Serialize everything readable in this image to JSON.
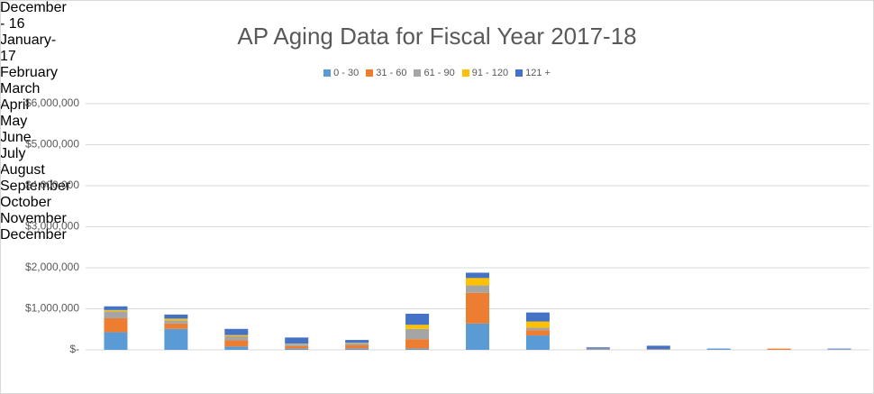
{
  "chart_data": {
    "type": "stacked_bar",
    "title": "AP Aging Data for Fiscal Year 2017-18",
    "categories": [
      "December - 16",
      "January-17",
      "February",
      "March",
      "April",
      "May",
      "June",
      "July",
      "August",
      "September",
      "October",
      "November",
      "December"
    ],
    "series": [
      {
        "name": "0 - 30",
        "color": "#5b9bd5",
        "values": [
          430000,
          510000,
          80000,
          30000,
          30000,
          30000,
          640000,
          350000,
          10000,
          10000,
          20000,
          0,
          10000
        ]
      },
      {
        "name": "31 - 60",
        "color": "#ed7d31",
        "values": [
          340000,
          130000,
          150000,
          60000,
          80000,
          230000,
          750000,
          130000,
          10000,
          10000,
          0,
          30000,
          0
        ]
      },
      {
        "name": "61 - 90",
        "color": "#a5a5a5",
        "values": [
          170000,
          80000,
          100000,
          50000,
          50000,
          250000,
          180000,
          60000,
          10000,
          0,
          0,
          0,
          10000
        ]
      },
      {
        "name": "91 - 120",
        "color": "#ffc000",
        "values": [
          30000,
          40000,
          30000,
          10000,
          10000,
          100000,
          180000,
          150000,
          0,
          0,
          0,
          0,
          0
        ]
      },
      {
        "name": "121 +",
        "color": "#4472c4",
        "values": [
          90000,
          100000,
          150000,
          150000,
          70000,
          270000,
          130000,
          220000,
          30000,
          80000,
          10000,
          0,
          10000
        ]
      }
    ],
    "ylim": [
      0,
      6000000
    ],
    "yticks": [
      {
        "value": 0,
        "label": "$-"
      },
      {
        "value": 1000000,
        "label": "$1,000,000"
      },
      {
        "value": 2000000,
        "label": "$2,000,000"
      },
      {
        "value": 3000000,
        "label": "$3,000,000"
      },
      {
        "value": 4000000,
        "label": "$4,000,000"
      },
      {
        "value": 5000000,
        "label": "$5,000,000"
      },
      {
        "value": 6000000,
        "label": "$6,000,000"
      }
    ],
    "grid": true,
    "legend": "top"
  }
}
